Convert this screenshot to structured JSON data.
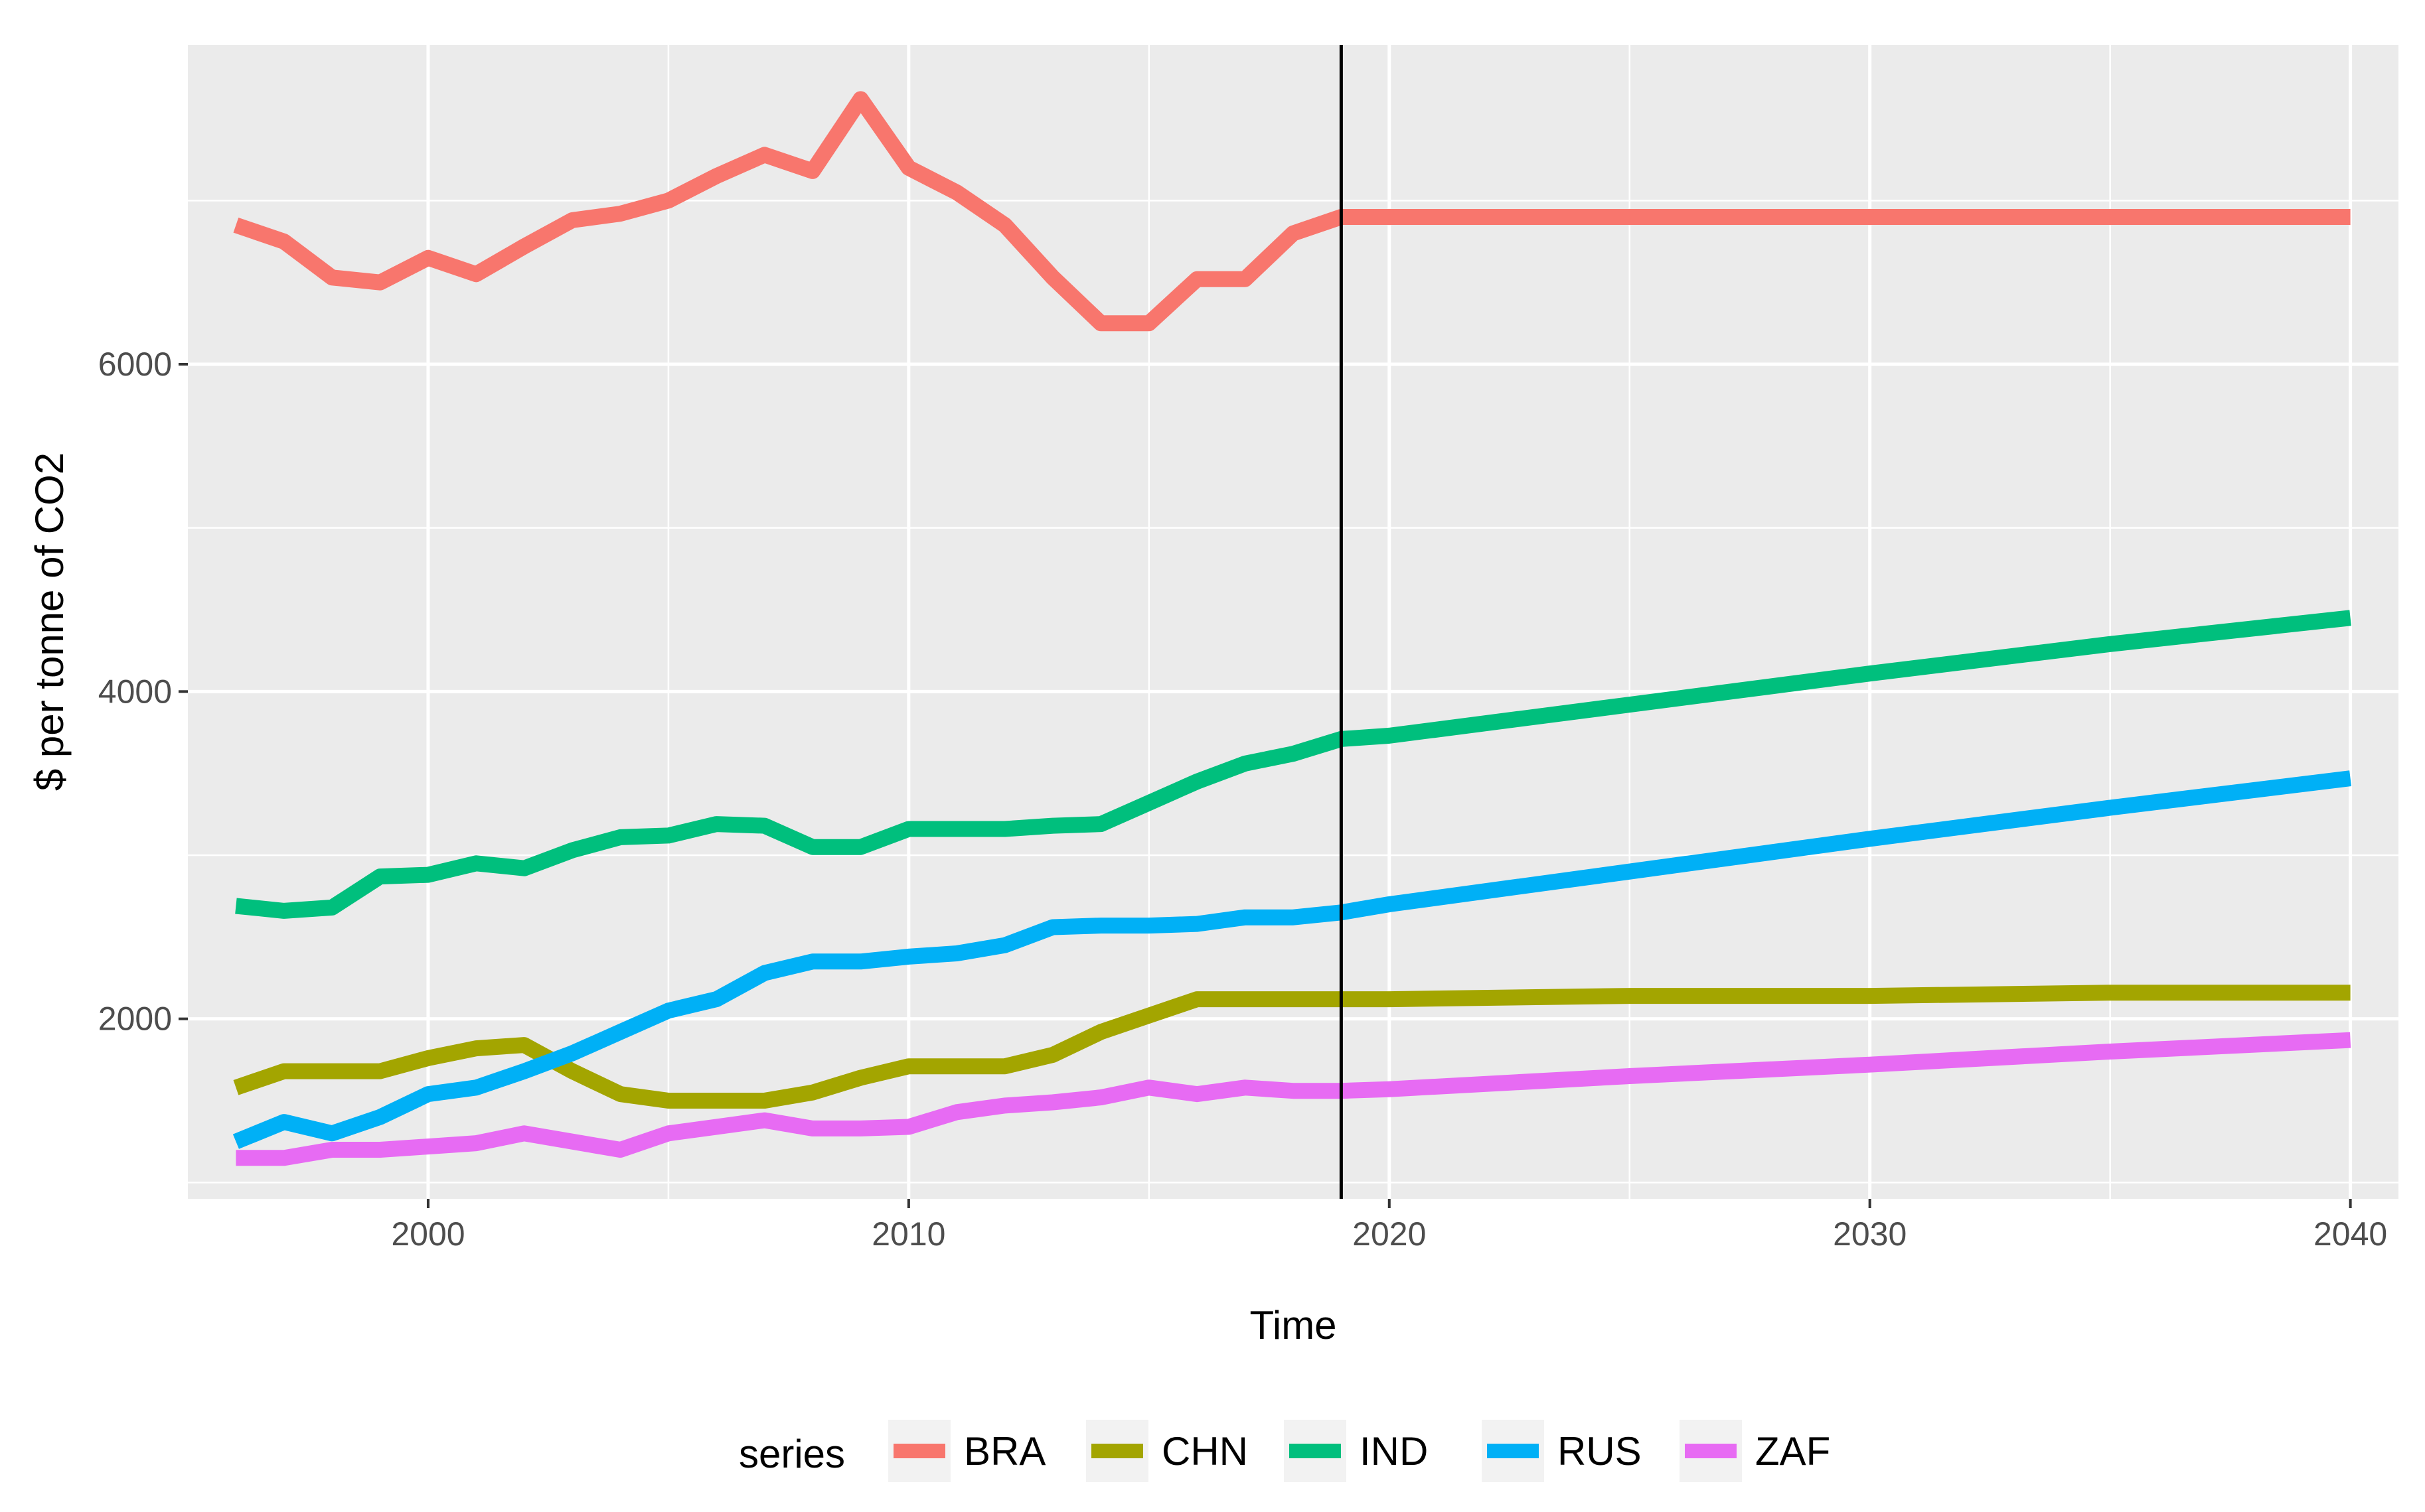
{
  "chart_data": {
    "type": "line",
    "title": "",
    "xlabel": "Time",
    "ylabel": "$ per tonne of CO2",
    "xlim": [
      1995,
      2041
    ],
    "ylim": [
      900,
      7950
    ],
    "x_ticks": [
      2000,
      2010,
      2020,
      2030,
      2040
    ],
    "x_tick_labels": [
      "2000",
      "2010",
      "2020",
      "2030",
      "2040"
    ],
    "y_ticks": [
      2000,
      4000,
      6000
    ],
    "y_tick_labels": [
      "2000",
      "4000",
      "6000"
    ],
    "grid": true,
    "vline": 2019,
    "legend": {
      "title": "series",
      "position": "bottom",
      "entries": [
        "BRA",
        "CHN",
        "IND",
        "RUS",
        "ZAF"
      ]
    },
    "series": [
      {
        "name": "BRA",
        "color": "#F8766D",
        "x": [
          1996,
          1997,
          1998,
          1999,
          2000,
          2001,
          2002,
          2003,
          2004,
          2005,
          2006,
          2007,
          2008,
          2009,
          2010,
          2011,
          2012,
          2013,
          2014,
          2015,
          2016,
          2017,
          2018,
          2019,
          2020,
          2025,
          2030,
          2035,
          2040
        ],
        "values": [
          6850,
          6750,
          6530,
          6500,
          6650,
          6550,
          6720,
          6880,
          6920,
          7000,
          7150,
          7280,
          7180,
          7620,
          7200,
          7050,
          6850,
          6530,
          6250,
          6250,
          6520,
          6520,
          6800,
          6900,
          6900,
          6900,
          6900,
          6900,
          6900
        ]
      },
      {
        "name": "CHN",
        "color": "#A3A500",
        "x": [
          1996,
          1997,
          1998,
          1999,
          2000,
          2001,
          2002,
          2003,
          2004,
          2005,
          2006,
          2007,
          2008,
          2009,
          2010,
          2011,
          2012,
          2013,
          2014,
          2015,
          2016,
          2017,
          2018,
          2019,
          2020,
          2025,
          2030,
          2035,
          2040
        ],
        "values": [
          1580,
          1680,
          1680,
          1680,
          1760,
          1820,
          1840,
          1680,
          1540,
          1500,
          1500,
          1500,
          1550,
          1640,
          1710,
          1710,
          1710,
          1780,
          1920,
          2020,
          2120,
          2120,
          2120,
          2120,
          2120,
          2140,
          2140,
          2160,
          2160
        ]
      },
      {
        "name": "IND",
        "color": "#00BF7D",
        "x": [
          1996,
          1997,
          1998,
          1999,
          2000,
          2001,
          2002,
          2003,
          2004,
          2005,
          2006,
          2007,
          2008,
          2009,
          2010,
          2011,
          2012,
          2013,
          2014,
          2015,
          2016,
          2017,
          2018,
          2019,
          2020,
          2025,
          2030,
          2035,
          2040
        ],
        "values": [
          2690,
          2660,
          2680,
          2870,
          2880,
          2950,
          2920,
          3030,
          3110,
          3120,
          3190,
          3180,
          3050,
          3050,
          3160,
          3160,
          3160,
          3180,
          3190,
          3320,
          3450,
          3560,
          3620,
          3710,
          3730,
          3920,
          4110,
          4290,
          4450
        ]
      },
      {
        "name": "RUS",
        "color": "#00B0F6",
        "x": [
          1996,
          1997,
          1998,
          1999,
          2000,
          2001,
          2002,
          2003,
          2004,
          2005,
          2006,
          2007,
          2008,
          2009,
          2010,
          2011,
          2012,
          2013,
          2014,
          2015,
          2016,
          2017,
          2018,
          2019,
          2020,
          2025,
          2030,
          2035,
          2040
        ],
        "values": [
          1250,
          1370,
          1300,
          1400,
          1540,
          1580,
          1680,
          1790,
          1920,
          2050,
          2120,
          2280,
          2350,
          2350,
          2380,
          2400,
          2450,
          2560,
          2570,
          2570,
          2580,
          2620,
          2620,
          2650,
          2700,
          2900,
          3100,
          3290,
          3470
        ]
      },
      {
        "name": "ZAF",
        "color": "#E76BF3",
        "x": [
          1996,
          1997,
          1998,
          1999,
          2000,
          2001,
          2002,
          2003,
          2004,
          2005,
          2006,
          2007,
          2008,
          2009,
          2010,
          2011,
          2012,
          2013,
          2014,
          2015,
          2016,
          2017,
          2018,
          2019,
          2020,
          2025,
          2030,
          2035,
          2040
        ],
        "values": [
          1150,
          1150,
          1200,
          1200,
          1220,
          1240,
          1300,
          1250,
          1200,
          1300,
          1340,
          1380,
          1330,
          1330,
          1340,
          1430,
          1470,
          1490,
          1520,
          1580,
          1540,
          1580,
          1560,
          1560,
          1570,
          1650,
          1720,
          1800,
          1870
        ]
      }
    ]
  }
}
